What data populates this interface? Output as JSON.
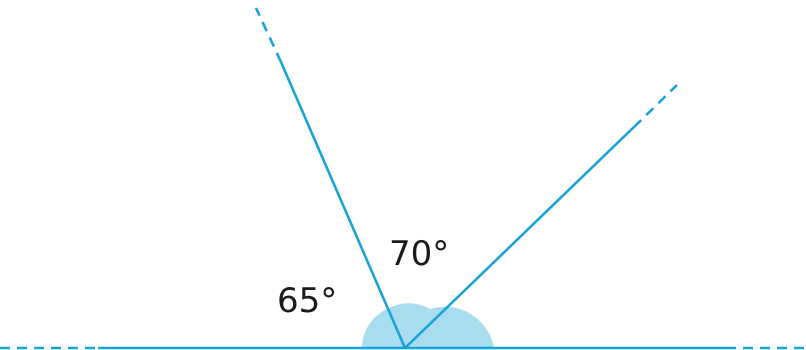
{
  "diagram": {
    "angles": [
      {
        "label": "65°",
        "degrees": 65
      },
      {
        "label": "70°",
        "degrees": 70
      }
    ],
    "colors": {
      "line": "#1aa3d9",
      "sector_fill": "#a8dcef",
      "text": "#1a1a1a"
    }
  }
}
